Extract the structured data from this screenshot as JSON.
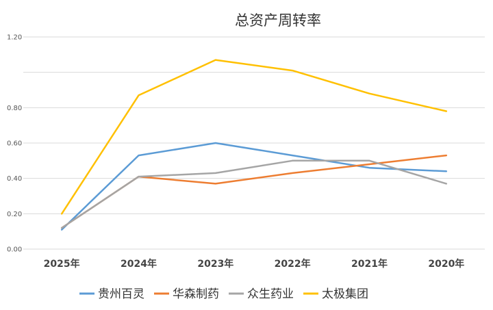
{
  "chart_data": {
    "type": "line",
    "title": "总资产周转率",
    "categories": [
      "2025年",
      "2024年",
      "2023年",
      "2022年",
      "2021年",
      "2020年"
    ],
    "y_ticks": [
      "0.00",
      "0.20",
      "0.40",
      "0.60",
      "0.80",
      "",
      "1.20"
    ],
    "ylim": [
      0,
      1.2
    ],
    "grid": true,
    "legend_position": "bottom",
    "series": [
      {
        "name": "贵州百灵",
        "color": "#5B9BD5",
        "values": [
          0.11,
          0.53,
          0.6,
          0.53,
          0.46,
          0.44
        ]
      },
      {
        "name": "华森制药",
        "color": "#ED7D31",
        "values": [
          0.12,
          0.41,
          0.37,
          0.43,
          0.48,
          0.53
        ]
      },
      {
        "name": "众生药业",
        "color": "#A5A5A5",
        "values": [
          0.12,
          0.41,
          0.43,
          0.5,
          0.5,
          0.37
        ]
      },
      {
        "name": "太极集团",
        "color": "#FFC000",
        "values": [
          0.2,
          0.87,
          1.07,
          1.01,
          0.88,
          0.78
        ]
      }
    ]
  }
}
